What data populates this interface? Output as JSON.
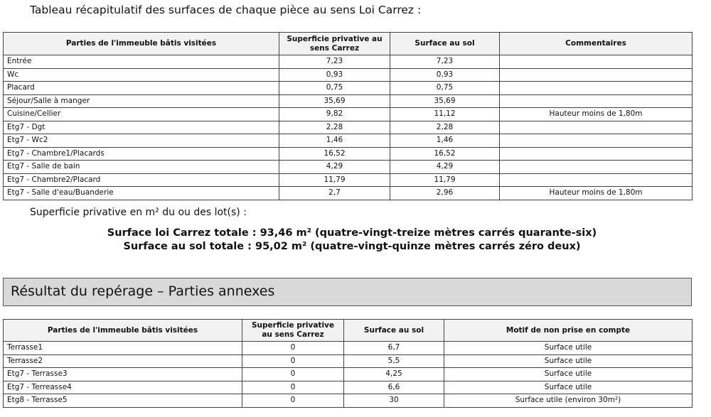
{
  "title": "Tableau récapitulatif des surfaces de chaque pièce au sens Loi Carrez :",
  "table1": {
    "headers": [
      "Parties de l'immeuble bâtis visitées",
      "Superficie privative au sens Carrez",
      "Surface au sol",
      "Commentaires"
    ],
    "rows": [
      [
        "Entrée",
        "7,23",
        "7,23",
        ""
      ],
      [
        "Wc",
        "0,93",
        "0,93",
        ""
      ],
      [
        "Placard",
        "0,75",
        "0,75",
        ""
      ],
      [
        "Séjour/Salle à manger",
        "35,69",
        "35,69",
        ""
      ],
      [
        "Cuisine/Cellier",
        "9,82",
        "11,12",
        "Hauteur moins de 1,80m"
      ],
      [
        "Etg7 - Dgt",
        "2,28",
        "2,28",
        ""
      ],
      [
        "Etg7 - Wc2",
        "1,46",
        "1,46",
        ""
      ],
      [
        "Etg7 - Chambre1/Placards",
        "16,52",
        "16,52",
        ""
      ],
      [
        "Etg7 - Salle de bain",
        "4,29",
        "4,29",
        ""
      ],
      [
        "Etg7 - Chambre2/Placard",
        "11,79",
        "11,79",
        ""
      ],
      [
        "Etg7 - Salle d'eau/Buanderie",
        "2,7",
        "2,96",
        "Hauteur moins de 1,80m"
      ]
    ]
  },
  "summary": {
    "label": "Superficie privative en m² du ou des lot(s) :",
    "carrez_total": "Surface loi Carrez totale : 93,46 m² (quatre-vingt-treize mètres carrés quarante-six)",
    "sol_total": "Surface au sol totale : 95,02 m² (quatre-vingt-quinze mètres carrés zéro deux)"
  },
  "section_title": "Résultat du repérage – Parties annexes",
  "table2": {
    "headers": [
      "Parties de l'immeuble bâtis visitées",
      "Superficie privative au sens Carrez",
      "Surface au sol",
      "Motif de non prise en compte"
    ],
    "rows": [
      [
        "Terrasse1",
        "0",
        "6,7",
        "Surface utile"
      ],
      [
        "Terrasse2",
        "0",
        "5,5",
        "Surface utile"
      ],
      [
        "Etg7 - Terrasse3",
        "0",
        "4,25",
        "Surface utile"
      ],
      [
        "Etg7 - Terreasse4",
        "0",
        "6,6",
        "Surface utile"
      ],
      [
        "Etg8 - Terrasse5",
        "0",
        "30",
        "Surface utile (environ 30m²)"
      ]
    ]
  }
}
